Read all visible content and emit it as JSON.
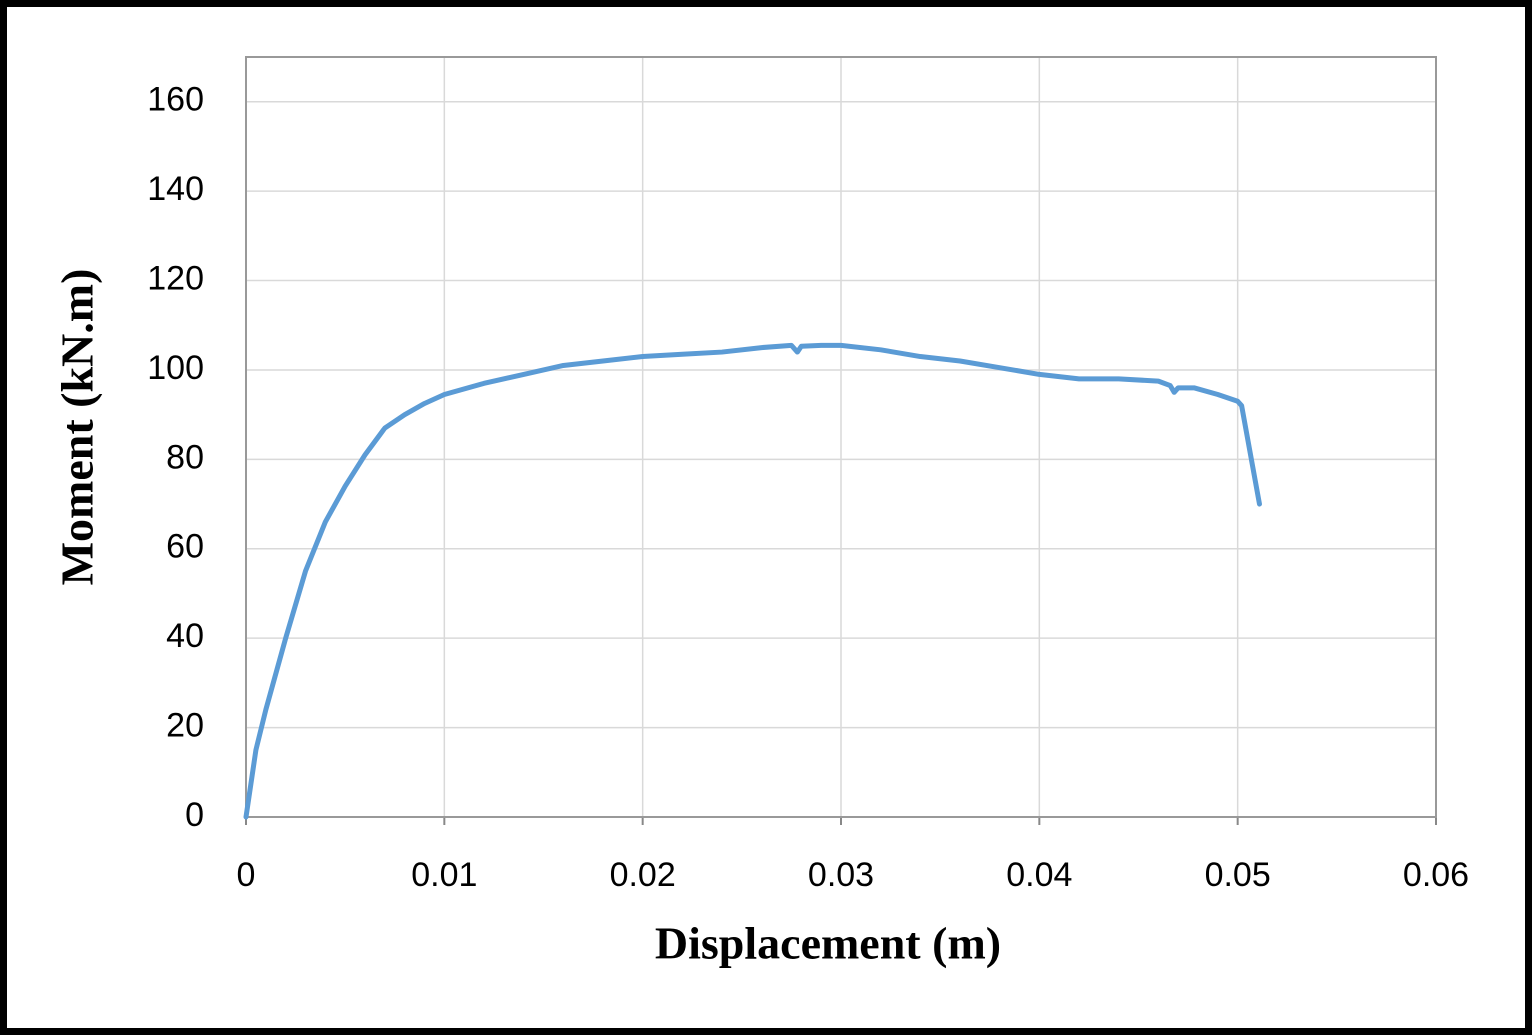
{
  "chart_data": {
    "type": "line",
    "x_label": "Displacement (m)",
    "y_label": "Moment (kN.m)",
    "xlim": [
      0,
      0.06
    ],
    "xticks": [
      0,
      0.01,
      0.02,
      0.03,
      0.04,
      0.05,
      0.06
    ],
    "ylim": [
      0,
      170
    ],
    "yticks": [
      0,
      20,
      40,
      60,
      80,
      100,
      120,
      140,
      160
    ],
    "grid": true,
    "series": [
      {
        "color": "#5b9bd5",
        "x": [
          0,
          0.0005,
          0.001,
          0.002,
          0.003,
          0.004,
          0.005,
          0.006,
          0.007,
          0.008,
          0.009,
          0.01,
          0.012,
          0.014,
          0.016,
          0.018,
          0.02,
          0.022,
          0.024,
          0.026,
          0.0275,
          0.0278,
          0.028,
          0.029,
          0.03,
          0.032,
          0.034,
          0.036,
          0.038,
          0.04,
          0.042,
          0.044,
          0.046,
          0.0466,
          0.0468,
          0.047,
          0.0478,
          0.049,
          0.05,
          0.0502,
          0.0511
        ],
        "values": [
          0,
          15,
          24,
          40,
          55,
          66,
          74,
          81,
          87,
          90,
          92.5,
          94.5,
          97,
          99,
          101,
          102,
          103,
          103.5,
          104,
          105,
          105.5,
          104,
          105.3,
          105.5,
          105.5,
          104.5,
          103,
          102,
          100.5,
          99,
          98,
          98,
          97.5,
          96.5,
          95,
          96,
          96,
          94.5,
          93,
          92,
          70
        ]
      }
    ]
  }
}
